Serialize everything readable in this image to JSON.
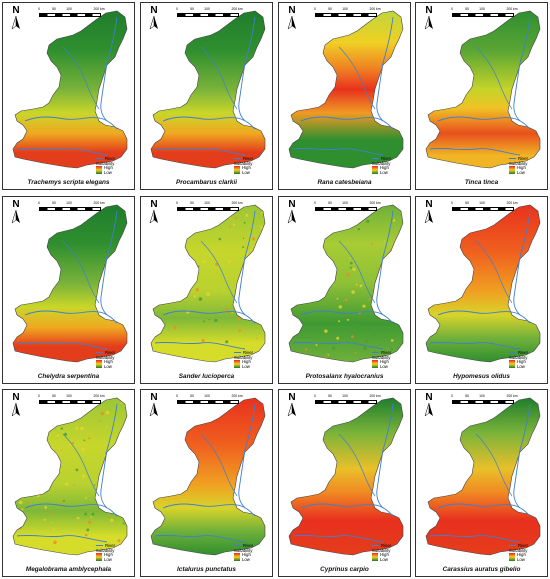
{
  "figure": {
    "north_label": "N",
    "scale_ticks": [
      "0",
      "50",
      "100",
      "200 km"
    ],
    "legend": {
      "river": "River",
      "suitability": "Suitability",
      "high": "High",
      "low": "Low"
    },
    "colors": {
      "high": "#e8261e",
      "mid": "#f5d021",
      "low": "#1d7a2a",
      "river": "#3f7fd0"
    },
    "panels": [
      {
        "species": "Trachemys scripta elegans",
        "pattern": "south-high"
      },
      {
        "species": "Procambarus clarkii",
        "pattern": "south-high"
      },
      {
        "species": "Rana catesbeiana",
        "pattern": "center-high"
      },
      {
        "species": "Tinca tinca",
        "pattern": "broad-mid"
      },
      {
        "species": "Chelydra serpentina",
        "pattern": "south-high"
      },
      {
        "species": "Sander lucioperca",
        "pattern": "scattered"
      },
      {
        "species": "Protosalanx hyalocranius",
        "pattern": "scattered-green"
      },
      {
        "species": "Hypomesus olidus",
        "pattern": "north-high"
      },
      {
        "species": "Megalobrama amblycephala",
        "pattern": "scattered"
      },
      {
        "species": "Ictalurus punctatus",
        "pattern": "north-high"
      },
      {
        "species": "Cyprinus carpio",
        "pattern": "south-high-red"
      },
      {
        "species": "Carassius auratus gibelio",
        "pattern": "south-high-red"
      }
    ]
  }
}
